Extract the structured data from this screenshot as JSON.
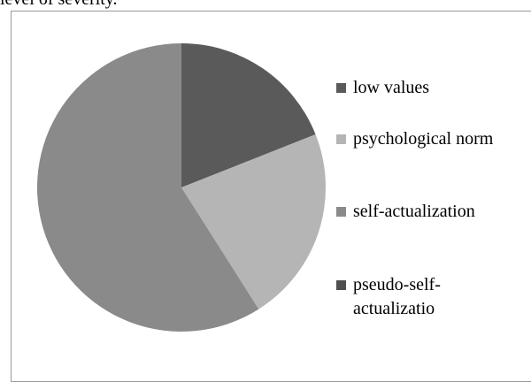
{
  "chart_data": {
    "type": "pie",
    "title": "level of severity.",
    "categories": [
      "low values",
      "psychological norm",
      "self-actualization",
      "pseudo-self-actualizatio"
    ],
    "values": [
      19,
      22,
      59,
      0
    ],
    "colors": [
      "#5a5a5a",
      "#b5b5b5",
      "#8a8a8a",
      "#4f4f4f"
    ]
  }
}
